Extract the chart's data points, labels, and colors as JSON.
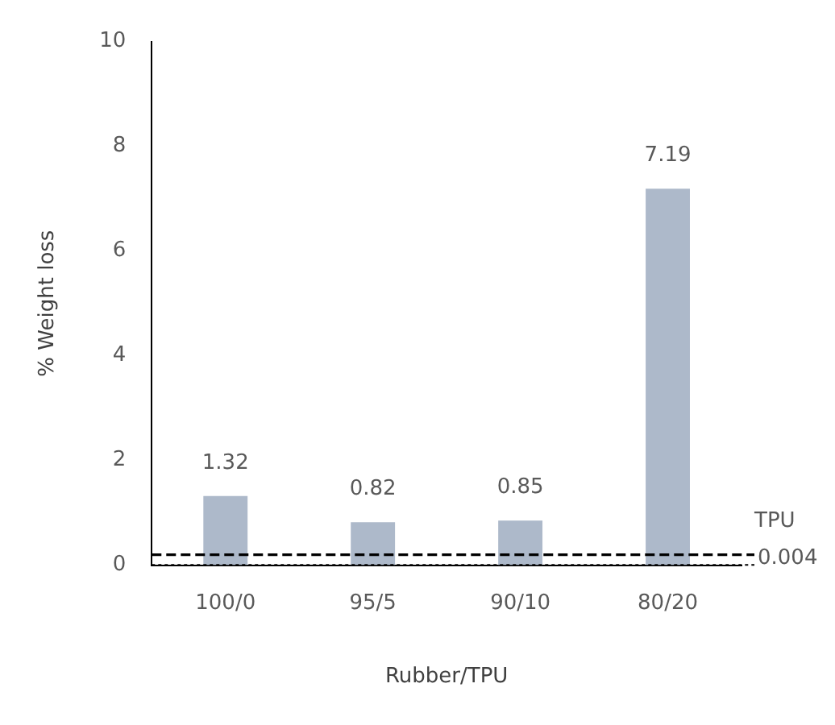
{
  "chart_data": {
    "type": "bar",
    "xlabel": "Rubber/TPU",
    "ylabel": "% Weight loss",
    "categories": [
      "100/0",
      "95/5",
      "90/10",
      "80/20"
    ],
    "values": [
      1.32,
      0.82,
      0.85,
      7.19
    ],
    "color": "#adb9ca",
    "data_labels": true,
    "ylim": [
      0,
      10
    ],
    "yticks": [
      0,
      2,
      4,
      6,
      8,
      10
    ],
    "grid": false,
    "legend": false,
    "ref_lines": [
      {
        "axis": "y",
        "value": 0.2,
        "label": "TPU",
        "color": "#000000",
        "line_style": "dashed"
      },
      {
        "axis": "y",
        "value": 0.004,
        "label": "0.004",
        "color": "#000000",
        "line_style": "dotted"
      }
    ]
  }
}
